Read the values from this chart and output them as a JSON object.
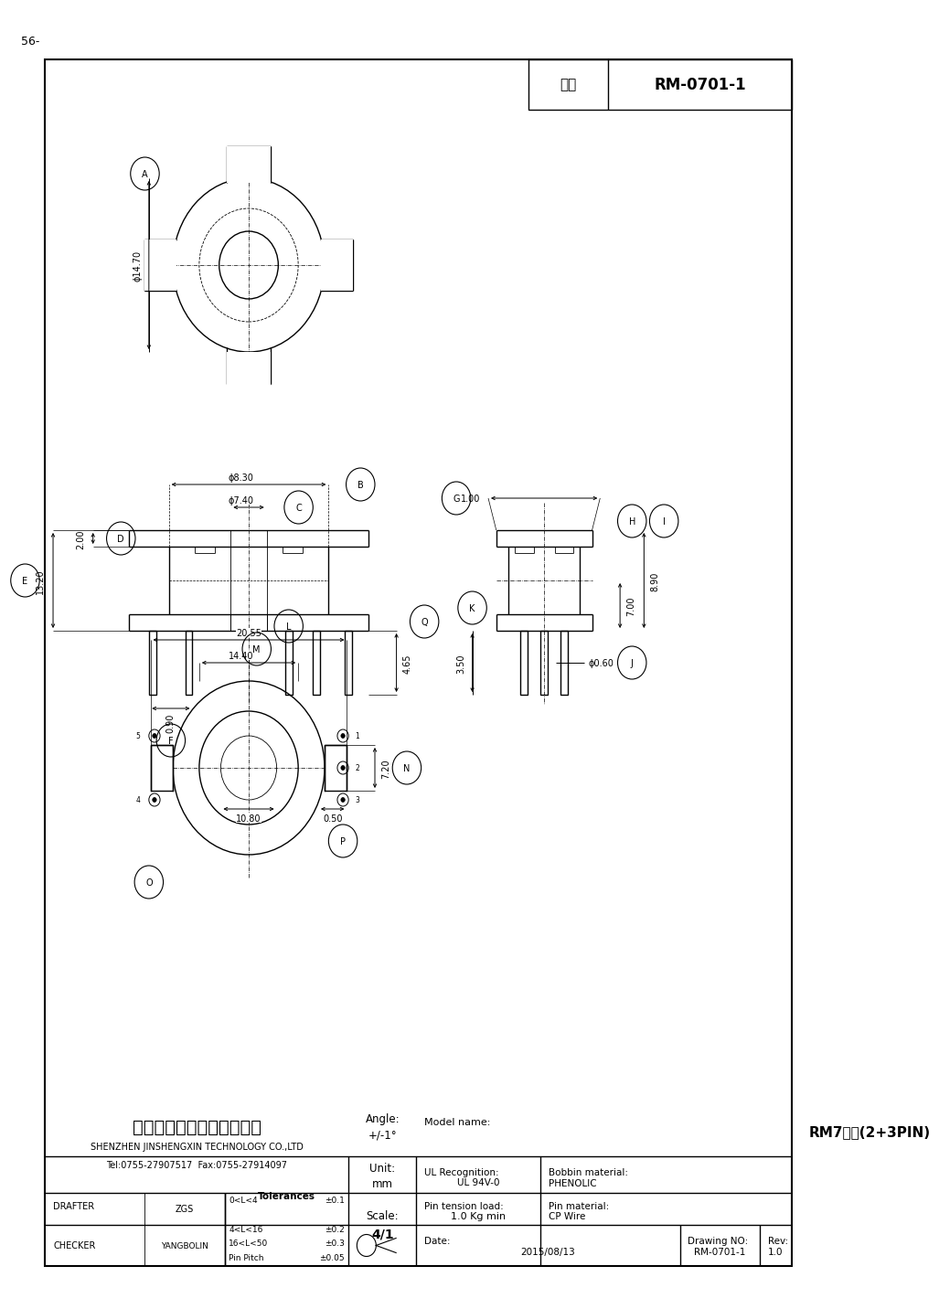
{
  "page_label": "56-",
  "title_box_label": "型号",
  "title_box_value": "RM-0701-1",
  "background": "#ffffff",
  "line_color": "#000000",
  "company_cn": "深圳市金盛鑫科技有限公司",
  "company_en": "SHENZHEN JINSHENGXIN TECHNOLOGY CO.,LTD",
  "tel": "Tel:0755-27907517  Fax:0755-27914097",
  "model_name_value": "RM7立式(2+3PIN)",
  "date_value": "2015/08/13",
  "drawing_no_value": "RM-0701-1",
  "rev_value": "1.0",
  "drafter_value": "ZGS",
  "checker_value": "YANGBOLIN"
}
